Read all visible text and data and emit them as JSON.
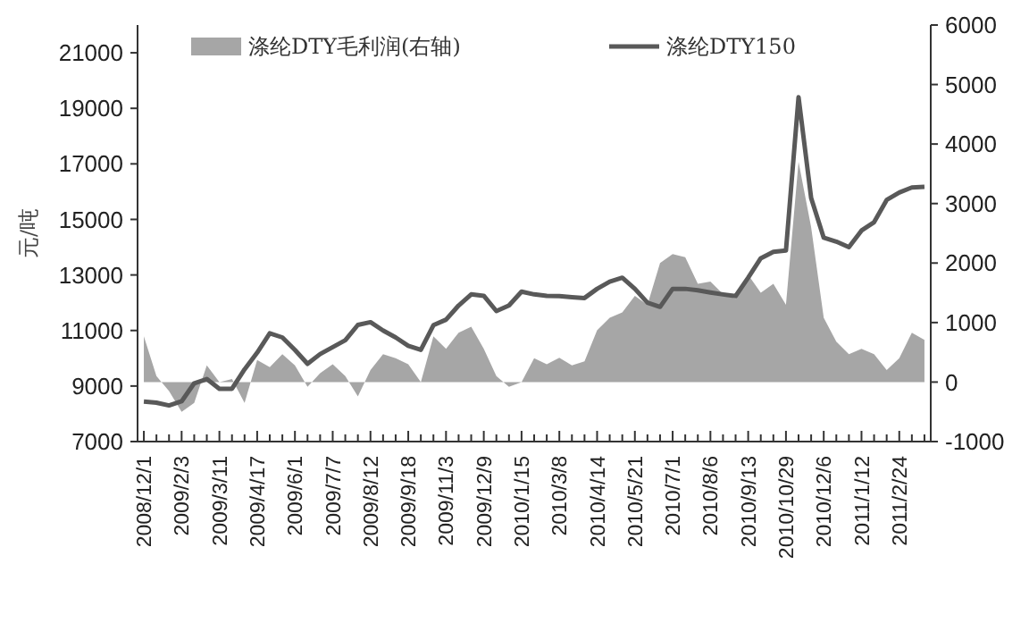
{
  "chart_data": {
    "type": "line",
    "ylabel": "元/吨",
    "legend": "top",
    "categories": [
      "2008/12/1",
      null,
      null,
      "2009/2/3",
      null,
      null,
      "2009/3/11",
      null,
      null,
      "2009/4/17",
      null,
      null,
      "2009/6/1",
      null,
      null,
      "2009/7/7",
      null,
      null,
      "2009/8/12",
      null,
      null,
      "2009/9/18",
      null,
      null,
      "2009/11/3",
      null,
      null,
      "2009/12/9",
      null,
      null,
      "2010/1/15",
      null,
      null,
      "2010/3/8",
      null,
      null,
      "2010/4/14",
      null,
      null,
      "2010/5/21",
      null,
      null,
      "2010/7/1",
      null,
      null,
      "2010/8/6",
      null,
      null,
      "2010/9/13",
      null,
      null,
      "2010/10/29",
      null,
      null,
      "2010/12/6",
      null,
      null,
      "2011/1/12",
      null,
      null,
      "2011/2/24",
      null,
      null
    ],
    "series": [
      {
        "name": "涤纶DTY毛利润(右轴)",
        "type": "area",
        "axis": "y2",
        "color": "#a6a6a6",
        "values": [
          770,
          100,
          -150,
          -500,
          -350,
          280,
          0,
          50,
          -350,
          370,
          250,
          470,
          280,
          -80,
          150,
          300,
          100,
          -240,
          200,
          470,
          400,
          300,
          0,
          770,
          560,
          830,
          930,
          560,
          100,
          -80,
          0,
          400,
          300,
          410,
          280,
          350,
          870,
          1080,
          1170,
          1450,
          1300,
          2000,
          2150,
          2100,
          1650,
          1690,
          1480,
          1400,
          1800,
          1500,
          1650,
          1300,
          3700,
          2600,
          1080,
          680,
          470,
          560,
          470,
          200,
          400,
          830,
          710
        ]
      },
      {
        "name": "涤纶DTY150",
        "color": "#595959",
        "values": [
          8440,
          8400,
          8300,
          8450,
          9100,
          9250,
          8900,
          8900,
          9600,
          10200,
          10900,
          10750,
          10300,
          9800,
          10150,
          10400,
          10650,
          11200,
          11300,
          11000,
          10750,
          10450,
          10300,
          11190,
          11390,
          11900,
          12300,
          12250,
          11700,
          11900,
          12400,
          12300,
          12250,
          12240,
          12200,
          12170,
          12500,
          12760,
          12900,
          12500,
          12000,
          11850,
          12500,
          12500,
          12450,
          12370,
          12300,
          12240,
          12900,
          13600,
          13830,
          13880,
          19400,
          15770,
          14340,
          14200,
          14000,
          14600,
          14900,
          15700,
          15970,
          16150,
          16170
        ]
      }
    ],
    "ylim": [
      7000,
      22000
    ],
    "yticks": [
      7000,
      9000,
      11000,
      13000,
      15000,
      17000,
      19000,
      21000
    ],
    "y2lim": [
      -1000,
      6000
    ],
    "y2ticks": [
      -1000,
      0,
      1000,
      2000,
      3000,
      4000,
      5000,
      6000
    ],
    "grid": false
  }
}
